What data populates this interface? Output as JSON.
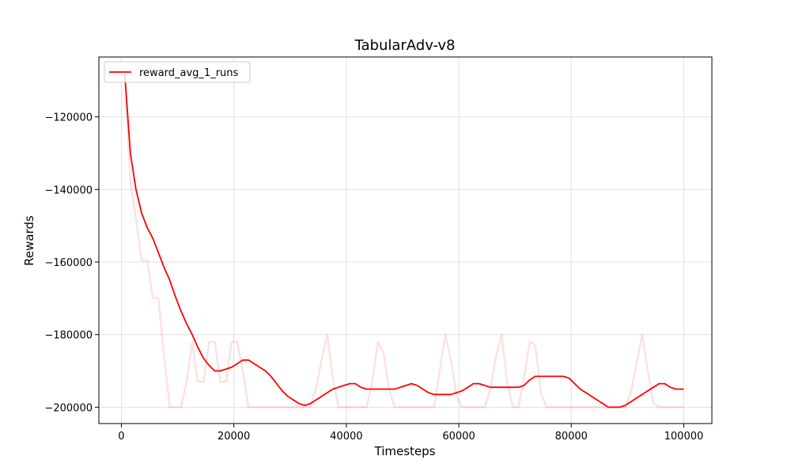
{
  "chart_data": {
    "type": "line",
    "title": "TabularAdv-v8",
    "xlabel": "Timesteps",
    "ylabel": "Rewards",
    "xlim": [
      -4000,
      105000
    ],
    "ylim": [
      -204500,
      -103500
    ],
    "xticks": [
      0,
      20000,
      40000,
      60000,
      80000,
      100000
    ],
    "xtick_labels": [
      "0",
      "20000",
      "40000",
      "60000",
      "80000",
      "100000"
    ],
    "yticks": [
      -200000,
      -180000,
      -160000,
      -140000,
      -120000
    ],
    "ytick_labels": [
      "−200000",
      "−180000",
      "−160000",
      "−140000",
      "−120000"
    ],
    "grid": true,
    "legend": {
      "placement": "top-left",
      "entries": [
        "reward_avg_1_runs"
      ]
    },
    "series": [
      {
        "name": "reward_avg_1_runs",
        "color": "#ff0000",
        "x": [
          600,
          1600,
          2600,
          3600,
          4600,
          5600,
          6600,
          7600,
          8600,
          9600,
          10600,
          11600,
          12600,
          13600,
          14600,
          15600,
          16600,
          17600,
          18600,
          19600,
          20600,
          21600,
          22600,
          23600,
          24600,
          25600,
          26600,
          27600,
          28600,
          29600,
          30600,
          31600,
          32600,
          33600,
          34600,
          35600,
          36600,
          37600,
          38600,
          39600,
          40600,
          41600,
          42600,
          43600,
          44600,
          45600,
          46600,
          47600,
          48600,
          49600,
          50600,
          51600,
          52600,
          53600,
          54600,
          55600,
          56600,
          57600,
          58600,
          59600,
          60600,
          61600,
          62600,
          63600,
          64600,
          65600,
          66600,
          67600,
          68600,
          69600,
          70600,
          71600,
          72600,
          73600,
          74600,
          75600,
          76600,
          77600,
          78600,
          79600,
          80600,
          81600,
          82600,
          83600,
          84600,
          85600,
          86600,
          87600,
          88600,
          89600,
          90600,
          91600,
          92600,
          93600,
          94600,
          95600,
          96600,
          97600,
          98600,
          99600,
          100000
        ],
        "y": [
          -108000,
          -130000,
          -140000,
          -146500,
          -150500,
          -153500,
          -157500,
          -161500,
          -165000,
          -169500,
          -173500,
          -177000,
          -180000,
          -183500,
          -186500,
          -188500,
          -190000,
          -190000,
          -189500,
          -189000,
          -188000,
          -187000,
          -187000,
          -188000,
          -189000,
          -190000,
          -191500,
          -193500,
          -195500,
          -197000,
          -198000,
          -199000,
          -199500,
          -199000,
          -198000,
          -197000,
          -196000,
          -195000,
          -194500,
          -194000,
          -193500,
          -193500,
          -194500,
          -195000,
          -195000,
          -195000,
          -195000,
          -195000,
          -195000,
          -194500,
          -194000,
          -193500,
          -194000,
          -195000,
          -196000,
          -196500,
          -196500,
          -196500,
          -196500,
          -196000,
          -195500,
          -194500,
          -193500,
          -193500,
          -194000,
          -194500,
          -194500,
          -194500,
          -194500,
          -194500,
          -194500,
          -194000,
          -192500,
          -191500,
          -191500,
          -191500,
          -191500,
          -191500,
          -191500,
          -192000,
          -193500,
          -195000,
          -196000,
          -197000,
          -198000,
          -199000,
          -200000,
          -200000,
          -200000,
          -199500,
          -198500,
          -197500,
          -196500,
          -195500,
          -194500,
          -193500,
          -193500,
          -194500,
          -195000,
          -195000,
          -195000
        ]
      },
      {
        "name": "",
        "color": "#ff0000",
        "opacity": 0.12,
        "x": [
          600,
          1600,
          2600,
          3600,
          4600,
          5600,
          6600,
          7600,
          8600,
          9600,
          10600,
          11600,
          12600,
          13600,
          14600,
          15600,
          16600,
          17600,
          18600,
          19600,
          20600,
          21600,
          22600,
          23600,
          24600,
          25600,
          26600,
          27600,
          28600,
          29600,
          30600,
          31600,
          32600,
          33600,
          34600,
          35600,
          36600,
          37600,
          38600,
          39600,
          40600,
          41600,
          42600,
          43600,
          44600,
          45600,
          46600,
          47600,
          48600,
          49600,
          50600,
          51600,
          52600,
          53600,
          54600,
          55600,
          56600,
          57600,
          58600,
          59600,
          60600,
          61600,
          62600,
          63600,
          64600,
          65600,
          66600,
          67600,
          68600,
          69600,
          70600,
          71600,
          72600,
          73600,
          74600,
          75600,
          76600,
          77600,
          78600,
          79600,
          80600,
          81600,
          82600,
          83600,
          84600,
          85600,
          86600,
          87600,
          88600,
          89600,
          90600,
          91600,
          92600,
          93600,
          94600,
          95600,
          96600,
          97600,
          98600,
          99600,
          100000
        ],
        "y": [
          -108000,
          -138000,
          -148000,
          -159500,
          -159500,
          -170000,
          -170000,
          -186000,
          -200000,
          -200000,
          -200000,
          -193000,
          -182000,
          -193000,
          -193000,
          -182000,
          -182000,
          -193000,
          -193000,
          -182000,
          -182000,
          -190000,
          -200000,
          -200000,
          -200000,
          -200000,
          -200000,
          -200000,
          -200000,
          -200000,
          -200000,
          -200000,
          -200000,
          -200000,
          -195000,
          -187000,
          -180000,
          -192000,
          -200000,
          -200000,
          -200000,
          -200000,
          -200000,
          -200000,
          -193000,
          -182000,
          -185000,
          -195000,
          -200000,
          -200000,
          -200000,
          -200000,
          -200000,
          -200000,
          -200000,
          -200000,
          -190000,
          -180000,
          -187000,
          -197000,
          -200000,
          -200000,
          -200000,
          -200000,
          -200000,
          -195000,
          -186000,
          -180000,
          -193000,
          -200000,
          -200000,
          -192000,
          -182000,
          -183000,
          -196000,
          -200000,
          -200000,
          -200000,
          -200000,
          -200000,
          -200000,
          -200000,
          -200000,
          -200000,
          -200000,
          -200000,
          -200000,
          -200000,
          -200000,
          -200000,
          -196000,
          -188000,
          -180000,
          -190000,
          -199000,
          -200000,
          -200000,
          -200000,
          -200000,
          -200000,
          -200000
        ]
      }
    ]
  }
}
